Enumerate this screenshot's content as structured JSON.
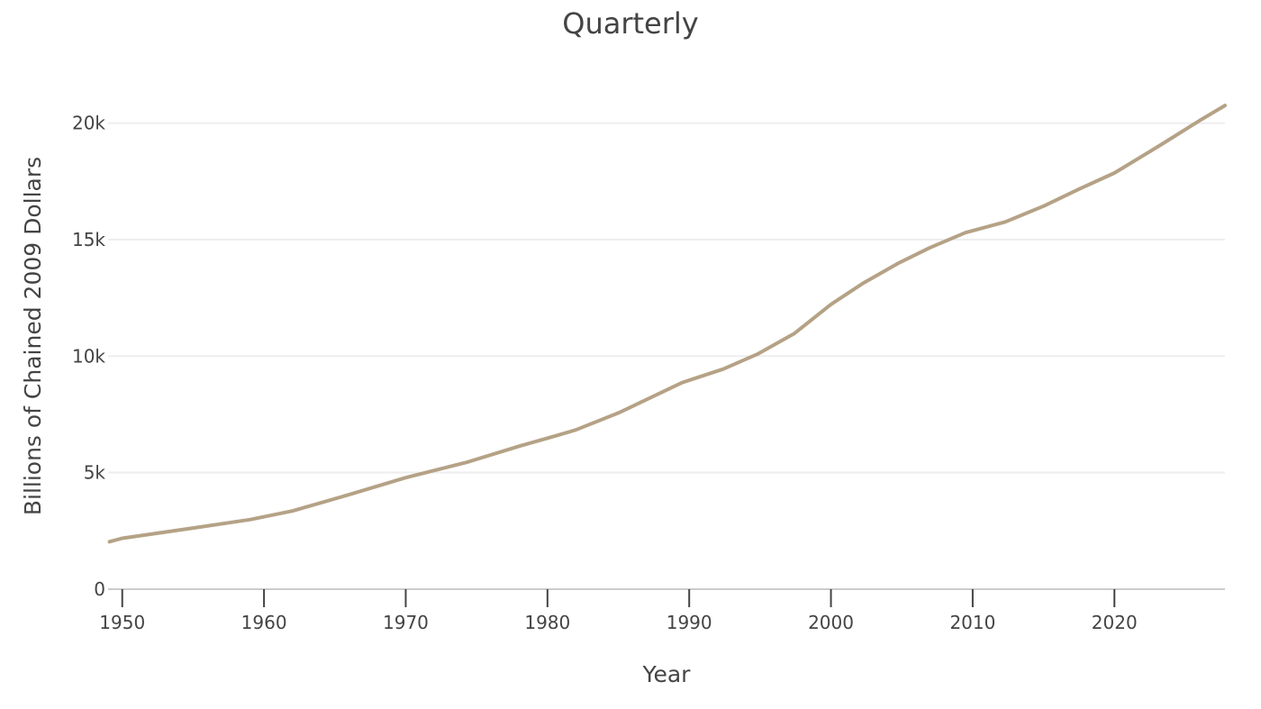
{
  "chart_data": {
    "type": "line",
    "title": "Quarterly",
    "xlabel": "Year",
    "ylabel": "Billions of Chained 2009 Dollars",
    "xlim": [
      1949,
      2027.8
    ],
    "ylim": [
      -200,
      22000
    ],
    "x_ticks": [
      1950,
      1960,
      1970,
      1980,
      1990,
      2000,
      2010,
      2020
    ],
    "y_ticks": [
      0,
      5000,
      10000,
      15000,
      20000
    ],
    "y_tick_labels": [
      "0",
      "5k",
      "10k",
      "15k",
      "20k"
    ],
    "grid": true,
    "series": [
      {
        "color": "#b5a286",
        "x": [
          1949.1,
          1950,
          1955,
          1959,
          1962,
          1966,
          1970,
          1974.3,
          1978,
          1980.6,
          1982,
          1985,
          1989.5,
          1992.4,
          1994.8,
          1997.4,
          2000,
          2002.3,
          2004.8,
          2007,
          2009.5,
          2012.3,
          2015,
          2017.5,
          2020,
          2023.3,
          2026,
          2027.8
        ],
        "values": [
          2030,
          2180,
          2620,
          2980,
          3350,
          4050,
          4780,
          5440,
          6130,
          6580,
          6830,
          7560,
          8860,
          9440,
          10080,
          10960,
          12220,
          13140,
          14000,
          14660,
          15300,
          15760,
          16440,
          17170,
          17860,
          19080,
          20110,
          20760
        ]
      }
    ]
  }
}
